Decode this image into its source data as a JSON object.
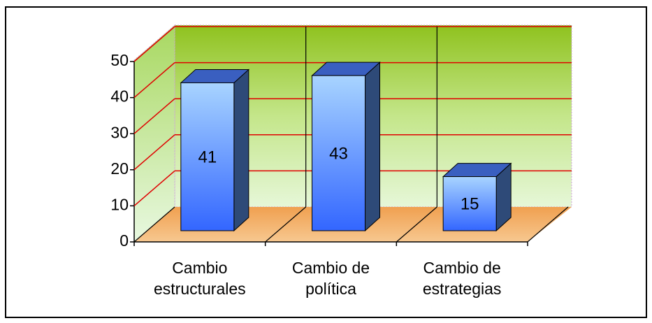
{
  "chart_data": {
    "type": "bar3d",
    "categories": [
      "Cambio estructurales",
      "Cambio de política",
      "Cambio de estrategias"
    ],
    "values": [
      41,
      43,
      15
    ],
    "color": "#3366ff",
    "ylim": [
      0,
      50
    ],
    "yticks": [
      0,
      10,
      20,
      30,
      40,
      50
    ],
    "grid": true
  }
}
